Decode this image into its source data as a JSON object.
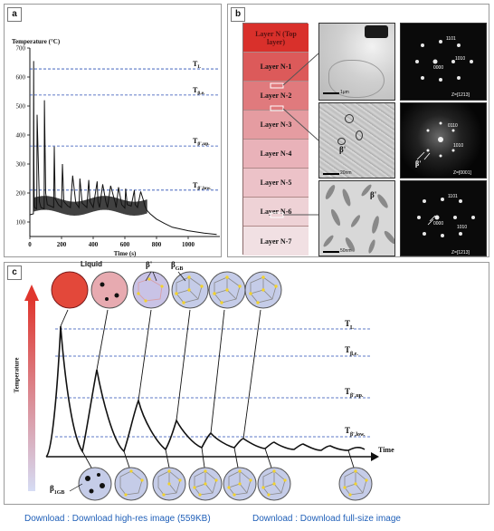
{
  "panel_a": {
    "tag": "a",
    "y_title": "Temperature (°C)",
    "x_title": "Time (s)",
    "y_ticks": [
      "700",
      "600",
      "500",
      "400",
      "300",
      "200",
      "100"
    ],
    "x_ticks": [
      "0",
      "200",
      "400",
      "600",
      "800",
      "1000"
    ],
    "thresholds": [
      {
        "label": "T",
        "sub": "L",
        "value": 628
      },
      {
        "label": "T",
        "sub": "β,e.",
        "value": 538
      },
      {
        "label": "T",
        "sub": "β',up.",
        "value": 362
      },
      {
        "label": "T",
        "sub": "β',low.",
        "value": 210
      }
    ]
  },
  "chart_data": {
    "type": "line",
    "title": "",
    "xlabel": "Time (s)",
    "ylabel": "Temperature (°C)",
    "xlim": [
      0,
      1200
    ],
    "ylim": [
      50,
      700
    ],
    "series": [
      {
        "x": [
          0,
          22,
          24,
          26,
          28,
          30,
          42,
          44,
          46,
          60,
          70,
          90,
          92,
          100,
          110,
          150,
          154,
          160,
          180,
          200,
          206,
          215,
          240,
          256,
          270,
          290,
          310,
          316,
          330,
          360,
          372,
          380,
          400,
          425,
          430,
          440,
          460,
          480,
          490,
          510,
          540,
          545,
          560,
          580,
          600,
          605,
          615,
          640,
          660,
          665,
          680,
          700,
          720,
          726,
          740,
          760,
          800,
          850,
          900,
          1000,
          1100,
          1180
        ],
        "y": [
          125,
          128,
          655,
          300,
          160,
          150,
          145,
          200,
          470,
          170,
          150,
          145,
          520,
          200,
          160,
          150,
          360,
          180,
          160,
          150,
          300,
          170,
          155,
          150,
          260,
          165,
          150,
          250,
          165,
          150,
          245,
          170,
          150,
          240,
          170,
          150,
          230,
          170,
          150,
          225,
          165,
          150,
          220,
          160,
          148,
          215,
          160,
          155,
          210,
          160,
          150,
          205,
          170,
          155,
          140,
          128,
          110,
          95,
          82,
          70,
          62,
          57
        ]
      }
    ]
  },
  "panel_b": {
    "tag": "b",
    "layers": [
      "Layer N (Top layer)",
      "Layer N-1",
      "Layer N-2",
      "Layer N-3",
      "Layer N-4",
      "Layer N-5",
      "Layer N-6",
      "Layer N-7"
    ],
    "scale_bars": [
      "1μm",
      "20nm",
      "50nm"
    ],
    "beta_labels": [
      "β'",
      "β'",
      "β'"
    ],
    "diffraction": [
      {
        "zone": "Z=[1213]",
        "spots": [
          "1101",
          "0000",
          "1010"
        ]
      },
      {
        "zone": "Z=[0001]",
        "spots": [
          "0110",
          "1010"
        ],
        "beta": "β'"
      },
      {
        "zone": "Z=[1213]",
        "spots": [
          "1101",
          "0000",
          "1010"
        ]
      }
    ]
  },
  "panel_c": {
    "tag": "c",
    "liquid_label": "Liquid",
    "beta_prime": "β'",
    "beta_gb": "β",
    "beta_gb_sub": "GB",
    "beta_1gb": "β",
    "beta_1gb_sub": "1GB",
    "y_title": "Temperature",
    "x_title": "Time",
    "thresholds": [
      {
        "label": "T",
        "sub": "L"
      },
      {
        "label": "T",
        "sub": "β,e."
      },
      {
        "label": "T",
        "sub": "β',up."
      },
      {
        "label": "T",
        "sub": "β',low."
      }
    ]
  },
  "footer": {
    "hi_res": "Download : Download high-res image (559KB)",
    "full": "Download : Download full-size image"
  },
  "colors": {
    "threshold_line": "#2a4fb5",
    "liquid_red": "#e3483a",
    "grain_blue": "#c5cce8",
    "precipitate_yellow": "#f2d22c",
    "layer_top": "#d62b2b",
    "layer_bottom": "#f1e4e6",
    "link": "#1f5fb8"
  }
}
